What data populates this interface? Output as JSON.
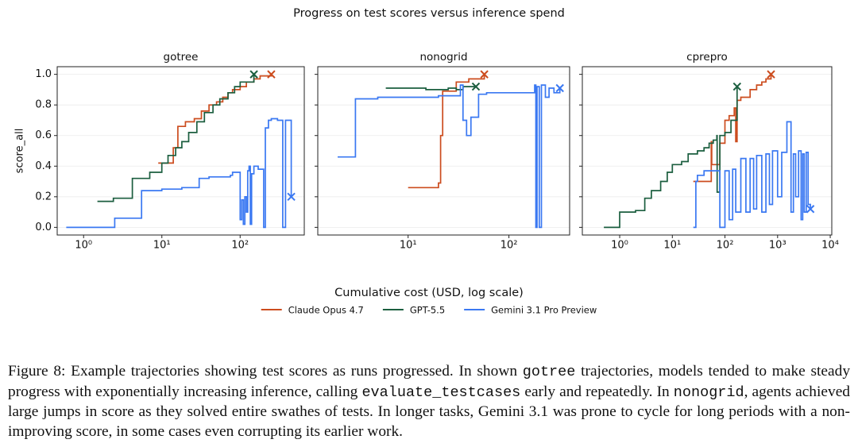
{
  "title": "Progress on test scores versus inference spend",
  "xlabel": "Cumulative cost (USD, log scale)",
  "chart_data": [
    {
      "type": "line",
      "title": "gotree",
      "ylabel": "score_all",
      "xscale": "log",
      "grid": true,
      "xlim": [
        0.46,
        660
      ],
      "ylim": [
        -0.05,
        1.05
      ],
      "xticks": [
        {
          "value": 1,
          "label": "10⁰"
        },
        {
          "value": 10,
          "label": "10¹"
        },
        {
          "value": 100,
          "label": "10²"
        }
      ],
      "yticks": [
        {
          "value": 0,
          "label": "0.0"
        },
        {
          "value": 0.2,
          "label": "0.2"
        },
        {
          "value": 0.4,
          "label": "0.4"
        },
        {
          "value": 0.6,
          "label": "0.6"
        },
        {
          "value": 0.8,
          "label": "0.8"
        },
        {
          "value": 1,
          "label": "1.0"
        }
      ],
      "series": [
        {
          "name": "Claude Opus 4.7",
          "color": "#cc4c1e",
          "x": [
            9,
            14,
            16,
            20,
            26,
            32,
            40,
            50,
            60,
            70,
            80,
            100,
            120,
            150,
            180,
            250
          ],
          "values": [
            0.42,
            0.52,
            0.66,
            0.69,
            0.71,
            0.76,
            0.8,
            0.82,
            0.85,
            0.88,
            0.9,
            0.92,
            0.95,
            0.97,
            0.99,
            1.0
          ]
        },
        {
          "name": "GPT-5.5",
          "color": "#1b5e3f",
          "x": [
            1.5,
            2.4,
            4.2,
            7,
            10,
            12,
            15,
            18,
            22,
            28,
            35,
            45,
            55,
            70,
            85,
            100,
            150
          ],
          "values": [
            0.17,
            0.19,
            0.32,
            0.36,
            0.42,
            0.47,
            0.52,
            0.56,
            0.62,
            0.69,
            0.75,
            0.8,
            0.84,
            0.88,
            0.92,
            0.95,
            1.0
          ]
        },
        {
          "name": "Gemini 3.1 Pro Preview",
          "color": "#3a78f2",
          "x": [
            0.6,
            2.5,
            5.5,
            10,
            18,
            30,
            40,
            55,
            75,
            80,
            100,
            105,
            110,
            115,
            120,
            125,
            130,
            135,
            140,
            150,
            170,
            200,
            210,
            230,
            250,
            300,
            350,
            380,
            450
          ],
          "values": [
            0,
            0.06,
            0.24,
            0.25,
            0.26,
            0.32,
            0.33,
            0.33,
            0.34,
            0.36,
            0.05,
            0.18,
            0.02,
            0.2,
            0.1,
            0.37,
            0.4,
            0.02,
            0.35,
            0.4,
            0.38,
            0.0,
            0.65,
            0.7,
            0.71,
            0.7,
            0.0,
            0.7,
            0.2
          ]
        }
      ]
    },
    {
      "type": "line",
      "title": "nonogrid",
      "xscale": "log",
      "grid": true,
      "xlim": [
        1.27,
        400
      ],
      "ylim": [
        -0.05,
        1.05
      ],
      "xticks": [
        {
          "value": 10,
          "label": "10¹"
        },
        {
          "value": 100,
          "label": "10²"
        }
      ],
      "yticks": [
        0,
        0.2,
        0.4,
        0.6,
        0.8,
        1
      ],
      "series": [
        {
          "color": "#cc4c1e",
          "x": [
            10,
            20,
            21,
            22,
            30,
            40,
            57
          ],
          "values": [
            0.26,
            0.29,
            0.6,
            0.89,
            0.95,
            0.97,
            1.0
          ]
        },
        {
          "color": "#1b5e3f",
          "x": [
            6,
            10,
            15,
            20,
            25,
            30,
            35,
            40,
            47
          ],
          "values": [
            0.91,
            0.91,
            0.9,
            0.9,
            0.91,
            0.9,
            0.92,
            0.92,
            0.92
          ]
        },
        {
          "color": "#3a78f2",
          "x": [
            2,
            3,
            5,
            10,
            20,
            30,
            33,
            35,
            38,
            42,
            50,
            60,
            80,
            120,
            180,
            185,
            190,
            200,
            210,
            230,
            250,
            280,
            320
          ],
          "values": [
            0.46,
            0.84,
            0.85,
            0.85,
            0.86,
            0.86,
            0.93,
            0.7,
            0.6,
            0.72,
            0.87,
            0.88,
            0.88,
            0.88,
            0.93,
            0.0,
            0.92,
            0.0,
            0.93,
            0.85,
            0.91,
            0.88,
            0.91
          ]
        }
      ]
    },
    {
      "type": "line",
      "title": "cprepro",
      "xscale": "log",
      "grid": true,
      "xlim": [
        0.195,
        10700
      ],
      "ylim": [
        -0.05,
        1.05
      ],
      "xticks": [
        {
          "value": 1,
          "label": "10⁰"
        },
        {
          "value": 10,
          "label": "10¹"
        },
        {
          "value": 100,
          "label": "10²"
        },
        {
          "value": 1000,
          "label": "10³"
        },
        {
          "value": 10000,
          "label": "10⁴"
        }
      ],
      "yticks": [
        0,
        0.2,
        0.4,
        0.6,
        0.8,
        1
      ],
      "series": [
        {
          "color": "#cc4c1e",
          "x": [
            25,
            40,
            55,
            56,
            80,
            100,
            120,
            150,
            160,
            170,
            200,
            300,
            400,
            500,
            600,
            750
          ],
          "values": [
            0.3,
            0.3,
            0.56,
            0.41,
            0.55,
            0.7,
            0.73,
            0.78,
            0.56,
            0.83,
            0.85,
            0.9,
            0.93,
            0.95,
            0.97,
            1.0
          ]
        },
        {
          "color": "#1b5e3f",
          "x": [
            0.5,
            1,
            2,
            3,
            4,
            6,
            8,
            10,
            15,
            20,
            30,
            40,
            50,
            60,
            70,
            71,
            80,
            100,
            130,
            170
          ],
          "values": [
            0.0,
            0.1,
            0.11,
            0.19,
            0.24,
            0.3,
            0.36,
            0.41,
            0.43,
            0.48,
            0.5,
            0.52,
            0.55,
            0.57,
            0.6,
            0.23,
            0.6,
            0.62,
            0.7,
            0.92
          ]
        },
        {
          "color": "#3a78f2",
          "x": [
            25,
            28,
            30,
            40,
            60,
            80,
            100,
            120,
            140,
            160,
            200,
            250,
            300,
            350,
            400,
            500,
            600,
            700,
            800,
            1000,
            1200,
            1500,
            1800,
            2000,
            2200,
            2500,
            2800,
            3000,
            3200,
            3500,
            3800,
            4200
          ],
          "values": [
            0.0,
            0.3,
            0.34,
            0.37,
            0.37,
            0.0,
            0.37,
            0.05,
            0.38,
            0.1,
            0.45,
            0.1,
            0.45,
            0.12,
            0.47,
            0.1,
            0.48,
            0.15,
            0.5,
            0.2,
            0.49,
            0.69,
            0.1,
            0.48,
            0.2,
            0.5,
            0.05,
            0.48,
            0.1,
            0.49,
            0.15,
            0.12
          ]
        }
      ]
    }
  ],
  "caption": [
    "Figure 8: Example trajectories showing test scores as runs progressed. In shown ",
    {
      "code": "gotree"
    },
    " trajectories, models tended to make steady progress with exponentially increasing inference, calling ",
    {
      "code": "evaluate_testcases"
    },
    " early and repeatedly. In ",
    {
      "code": "nonogrid"
    },
    ", agents achieved large jumps in score as they solved entire swathes of tests. In longer tasks, Gemini 3.1 was prone to cycle for long periods with a non-improving score, in some cases even corrupting its earlier work."
  ]
}
